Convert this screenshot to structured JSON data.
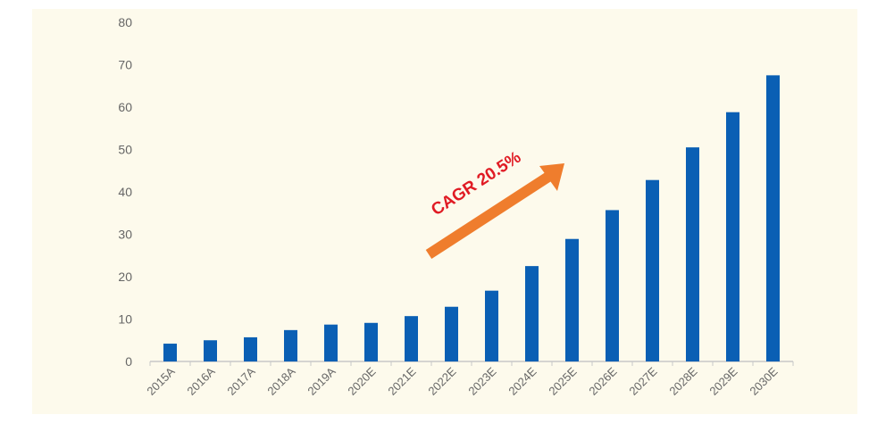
{
  "colors": {
    "panel_bg": "#fdfaec",
    "bar": "#0a5fb4",
    "axis": "#c8c8c8",
    "arrow": "#ef7d2d",
    "annotation": "#e01b24"
  },
  "chart_data": {
    "type": "bar",
    "title": "",
    "xlabel": "",
    "ylabel": "",
    "ylim": [
      0,
      80
    ],
    "yticks": [
      0,
      10,
      20,
      30,
      40,
      50,
      60,
      70,
      80
    ],
    "grid": false,
    "legend": "none",
    "categories": [
      "2015A",
      "2016A",
      "2017A",
      "2018A",
      "2019A",
      "2020E",
      "2021E",
      "2022E",
      "2023E",
      "2024E",
      "2025E",
      "2026E",
      "2027E",
      "2028E",
      "2029E",
      "2030E"
    ],
    "values": [
      4.2,
      5.0,
      5.7,
      7.4,
      8.7,
      9.1,
      10.7,
      12.9,
      16.7,
      22.5,
      28.9,
      35.7,
      42.8,
      50.5,
      58.8,
      67.5
    ],
    "annotations": [
      {
        "text": "CAGR 20.5%",
        "style": "orange arrow pointing up-right across 2022E–2025E"
      }
    ]
  }
}
